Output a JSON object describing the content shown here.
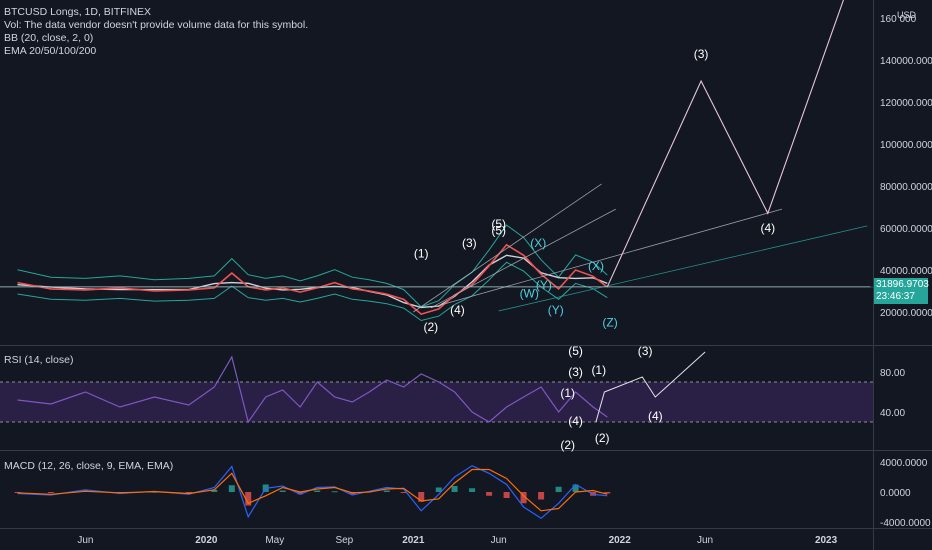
{
  "header": {
    "symbol_line": "BTCUSD Longs, 1D, BITFINEX",
    "vol_line": "Vol: The data vendor doesn't provide volume data for this symbol.",
    "bb_line": "BB (20, close, 2, 0)",
    "ema_line": "EMA 20/50/100/200"
  },
  "price_box": {
    "value": "31896.9703",
    "countdown": "23:46:37"
  },
  "rsi_label": "RSI (14, close)",
  "macd_label": "MACD (12, 26, close, 9, EMA, EMA)",
  "colors": {
    "background": "#131722",
    "price": "#ef5350",
    "bb": "#26a69a",
    "ema": "#d1d4dc",
    "projection": "#e8c6d6",
    "wave_cyan": "#4dd0e1",
    "rsi": "#7e57c2",
    "rsi_band": "#2a1f45",
    "macd": "#2962ff",
    "signal": "#ff6d00",
    "hist_up": "#26a69a",
    "hist_down": "#ef5350",
    "axis_text": "#d1d4dc",
    "price_box": "#26a69a"
  },
  "chart_data": [
    {
      "type": "line",
      "title": "BTCUSD Longs, 1D, BITFINEX",
      "ylabel": "USD",
      "y_axis_unit_label": "USD",
      "ylim": [
        0,
        165000
      ],
      "y_ticks": [
        "160 000",
        "140000.0000",
        "120000.0000",
        "100000.0000",
        "80000.0000",
        "60000.0000",
        "40000.0000",
        "20000.0000"
      ],
      "y_tick_values": [
        160000,
        140000,
        120000,
        100000,
        80000,
        60000,
        40000,
        20000
      ],
      "x_ticks": [
        "Jun",
        "2020",
        "May",
        "Sep",
        "2021",
        "Jun",
        "2022",
        "Jun",
        "2023"
      ],
      "x_tick_dates": [
        "2019-06-01",
        "2020-01-01",
        "2020-05-01",
        "2020-09-01",
        "2021-01-01",
        "2021-06-01",
        "2022-01-01",
        "2022-06-01",
        "2023-01-01"
      ],
      "series": [
        {
          "x": [
            "2019-02-01",
            "2019-04-01",
            "2019-06-01",
            "2019-08-01",
            "2019-10-01",
            "2019-12-01",
            "2020-01-15",
            "2020-02-15",
            "2020-03-15",
            "2020-04-15",
            "2020-05-15",
            "2020-06-15",
            "2020-07-15",
            "2020-08-15",
            "2020-09-15",
            "2020-10-15",
            "2020-11-15",
            "2020-12-15",
            "2021-01-15",
            "2021-02-15",
            "2021-03-15",
            "2021-04-15",
            "2021-05-15",
            "2021-06-15",
            "2021-07-15",
            "2021-08-15",
            "2021-09-15",
            "2021-10-15",
            "2021-11-15",
            "2021-12-10"
          ],
          "y": [
            34000,
            31000,
            30500,
            31500,
            30000,
            30500,
            31500,
            38500,
            32000,
            30500,
            31500,
            29500,
            31500,
            34000,
            31000,
            30000,
            28500,
            26000,
            19000,
            21500,
            28000,
            33000,
            42000,
            52000,
            47000,
            38000,
            31000,
            40000,
            37000,
            31897
          ]
        }
      ],
      "price_annotation": 31896.9703,
      "projections": [
        {
          "x": [
            "2021-12-10",
            "2022-05-25",
            "2022-09-20",
            "2023-03-01"
          ],
          "y": [
            32000,
            130000,
            67000,
            190000
          ]
        }
      ],
      "trendlines": [
        {
          "x": [
            "2021-01-01",
            "2021-11-30"
          ],
          "y": [
            20000,
            81000
          ]
        },
        {
          "x": [
            "2021-02-01",
            "2021-12-25"
          ],
          "y": [
            22000,
            69000
          ]
        },
        {
          "x": [
            "2021-02-01",
            "2022-10-15"
          ],
          "y": [
            22000,
            69000
          ]
        },
        {
          "x": [
            "2021-06-01",
            "2023-03-15"
          ],
          "y": [
            20500,
            61000
          ]
        },
        {
          "x": [
            "2019-01-01",
            "2023-03-20"
          ],
          "y": [
            32000,
            32000
          ]
        }
      ],
      "wave_labels": [
        {
          "text": "(1)",
          "x": "2021-01-15",
          "y": 46000
        },
        {
          "text": "(2)",
          "x": "2021-02-01",
          "y": 11000
        },
        {
          "text": "(3)",
          "x": "2021-04-10",
          "y": 51000
        },
        {
          "text": "(4)",
          "x": "2021-03-20",
          "y": 19000
        },
        {
          "text": "(5)",
          "x": "2021-06-01",
          "y": 60000
        },
        {
          "text": "(5)",
          "x": "2021-06-01",
          "y": 57000
        },
        {
          "text": "(3)",
          "x": "2022-05-25",
          "y": 141000
        },
        {
          "text": "(4)",
          "x": "2022-09-20",
          "y": 58000
        },
        {
          "text": "(X)",
          "x": "2021-08-10",
          "y": 51000
        },
        {
          "text": "(Y)",
          "x": "2021-08-20",
          "y": 31000
        },
        {
          "text": "(W)",
          "x": "2021-07-25",
          "y": 27000
        },
        {
          "text": "(X)",
          "x": "2021-11-20",
          "y": 40000
        },
        {
          "text": "(Z)",
          "x": "2021-12-15",
          "y": 13000
        },
        {
          "text": "(Y)",
          "x": "2021-09-10",
          "y": 19000
        }
      ]
    },
    {
      "type": "line",
      "title": "RSI (14, close)",
      "ylim": [
        0,
        100
      ],
      "y_ticks": [
        "80.00",
        "40.00"
      ],
      "y_tick_values": [
        80,
        40
      ],
      "bands": [
        70,
        30
      ],
      "series": [
        {
          "name": "RSI",
          "x": [
            "2019-02-01",
            "2019-04-01",
            "2019-06-01",
            "2019-08-01",
            "2019-10-01",
            "2019-12-01",
            "2020-01-15",
            "2020-02-15",
            "2020-03-15",
            "2020-04-15",
            "2020-05-15",
            "2020-06-15",
            "2020-07-15",
            "2020-08-15",
            "2020-09-15",
            "2020-10-15",
            "2020-11-15",
            "2020-12-15",
            "2021-01-15",
            "2021-02-15",
            "2021-03-15",
            "2021-04-15",
            "2021-05-15",
            "2021-06-15",
            "2021-07-15",
            "2021-08-15",
            "2021-09-15",
            "2021-10-15",
            "2021-11-15",
            "2021-12-10"
          ],
          "y": [
            52,
            48,
            60,
            45,
            55,
            47,
            65,
            95,
            30,
            55,
            62,
            45,
            70,
            55,
            50,
            60,
            72,
            65,
            78,
            70,
            60,
            40,
            30,
            45,
            55,
            65,
            40,
            60,
            45,
            35
          ]
        }
      ],
      "projection": {
        "x": [
          "2021-11-20",
          "2021-12-05",
          "2022-02-10",
          "2022-03-05",
          "2022-06-01"
        ],
        "y": [
          30,
          60,
          75,
          55,
          100
        ]
      },
      "wave_labels": [
        {
          "text": "(5)",
          "x": "2021-10-15",
          "y": 97
        },
        {
          "text": "(3)",
          "x": "2021-10-15",
          "y": 76
        },
        {
          "text": "(1)",
          "x": "2021-10-01",
          "y": 55
        },
        {
          "text": "(4)",
          "x": "2021-10-15",
          "y": 27
        },
        {
          "text": "(2)",
          "x": "2021-10-01",
          "y": 3
        },
        {
          "text": "(1)",
          "x": "2021-11-25",
          "y": 78
        },
        {
          "text": "(2)",
          "x": "2021-12-01",
          "y": 10
        },
        {
          "text": "(3)",
          "x": "2022-02-15",
          "y": 97
        },
        {
          "text": "(4)",
          "x": "2022-03-05",
          "y": 32
        }
      ]
    },
    {
      "type": "line",
      "title": "MACD (12, 26, close, 9, EMA, EMA)",
      "ylim": [
        -4500,
        4500
      ],
      "y_ticks": [
        "4000.0000",
        "0.0000",
        "-4000.0000"
      ],
      "y_tick_values": [
        4000,
        0,
        -4000
      ],
      "series": [
        {
          "name": "MACD",
          "x": [
            "2019-02-01",
            "2019-04-01",
            "2019-06-01",
            "2019-08-01",
            "2019-10-01",
            "2019-12-01",
            "2020-01-15",
            "2020-02-15",
            "2020-03-15",
            "2020-04-15",
            "2020-05-15",
            "2020-06-15",
            "2020-07-15",
            "2020-08-15",
            "2020-09-15",
            "2020-10-15",
            "2020-11-15",
            "2020-12-15",
            "2021-01-15",
            "2021-02-15",
            "2021-03-15",
            "2021-04-15",
            "2021-05-15",
            "2021-06-15",
            "2021-07-15",
            "2021-08-15",
            "2021-09-15",
            "2021-10-15",
            "2021-11-15",
            "2021-12-10"
          ],
          "y": [
            -200,
            -400,
            300,
            -200,
            100,
            -300,
            600,
            3400,
            -3300,
            500,
            800,
            -300,
            600,
            700,
            -400,
            100,
            600,
            400,
            -2500,
            -300,
            2000,
            3500,
            2500,
            1000,
            -2000,
            -3500,
            -1500,
            1000,
            -300,
            -500
          ]
        },
        {
          "name": "Signal",
          "x": [
            "2019-02-01",
            "2019-04-01",
            "2019-06-01",
            "2019-08-01",
            "2019-10-01",
            "2019-12-01",
            "2020-01-15",
            "2020-02-15",
            "2020-03-15",
            "2020-04-15",
            "2020-05-15",
            "2020-06-15",
            "2020-07-15",
            "2020-08-15",
            "2020-09-15",
            "2020-10-15",
            "2020-11-15",
            "2020-12-15",
            "2021-01-15",
            "2021-02-15",
            "2021-03-15",
            "2021-04-15",
            "2021-05-15",
            "2021-06-15",
            "2021-07-15",
            "2021-08-15",
            "2021-09-15",
            "2021-10-15",
            "2021-11-15",
            "2021-12-10"
          ],
          "y": [
            -100,
            -300,
            100,
            -100,
            50,
            -200,
            300,
            2500,
            -1500,
            -500,
            600,
            0,
            400,
            600,
            -100,
            0,
            400,
            500,
            -1200,
            -900,
            1200,
            3000,
            3000,
            1800,
            -500,
            -2500,
            -2200,
            0,
            200,
            -300
          ]
        }
      ]
    }
  ]
}
